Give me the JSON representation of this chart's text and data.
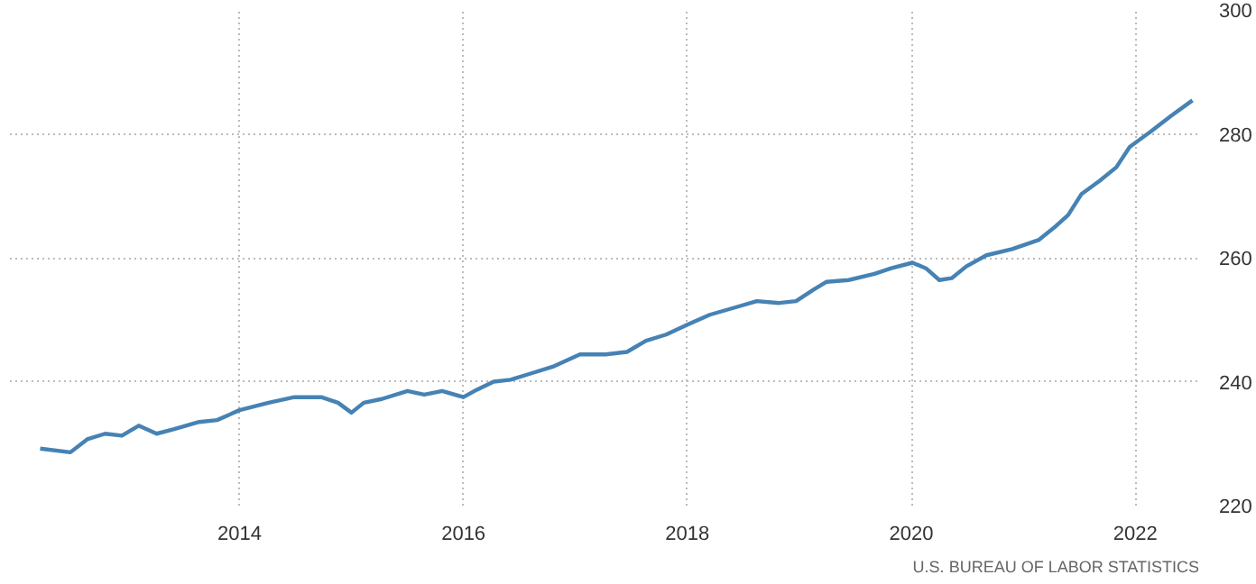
{
  "chart_data": {
    "type": "line",
    "x": [
      2012.22,
      2012.49,
      2012.64,
      2012.8,
      2012.95,
      2013.1,
      2013.26,
      2013.41,
      2013.64,
      2013.8,
      2014.0,
      2014.26,
      2014.49,
      2014.73,
      2014.88,
      2015.0,
      2015.11,
      2015.27,
      2015.5,
      2015.65,
      2015.81,
      2016.0,
      2016.12,
      2016.27,
      2016.42,
      2016.58,
      2016.81,
      2017.04,
      2017.27,
      2017.46,
      2017.63,
      2017.81,
      2018.0,
      2018.2,
      2018.43,
      2018.62,
      2018.82,
      2018.97,
      2019.13,
      2019.24,
      2019.44,
      2019.67,
      2019.82,
      2020.01,
      2020.13,
      2020.25,
      2020.36,
      2020.49,
      2020.67,
      2020.9,
      2021.14,
      2021.29,
      2021.4,
      2021.52,
      2021.68,
      2021.83,
      2021.95,
      2022.14,
      2022.32,
      2022.51
    ],
    "series": [
      {
        "color": "#4682b4",
        "values": [
          229.2,
          228.6,
          230.7,
          231.6,
          231.3,
          232.9,
          231.6,
          232.3,
          233.5,
          233.8,
          235.4,
          236.6,
          237.5,
          237.5,
          236.6,
          235.0,
          236.6,
          237.2,
          238.5,
          237.9,
          238.5,
          237.5,
          238.7,
          240.0,
          240.3,
          241.2,
          242.5,
          244.4,
          244.4,
          244.8,
          246.6,
          247.6,
          249.2,
          250.8,
          252.0,
          253.0,
          252.7,
          253.0,
          254.9,
          256.1,
          256.4,
          257.4,
          258.3,
          259.2,
          258.3,
          256.4,
          256.7,
          258.6,
          260.4,
          261.4,
          262.9,
          265.1,
          266.9,
          270.3,
          272.4,
          274.6,
          277.9,
          280.4,
          282.9,
          285.4
        ]
      }
    ],
    "xlim": [
      2011.95,
      2022.57
    ],
    "xticks": [
      2014,
      2016,
      2018,
      2020,
      2022
    ],
    "ylim": [
      220,
      300
    ],
    "yticks": [
      220,
      240,
      260,
      280,
      300
    ],
    "grid": true,
    "line_style": "solid",
    "marker": "none",
    "annotations": [
      "U.S. BUREAU OF LABOR STATISTICS"
    ]
  }
}
